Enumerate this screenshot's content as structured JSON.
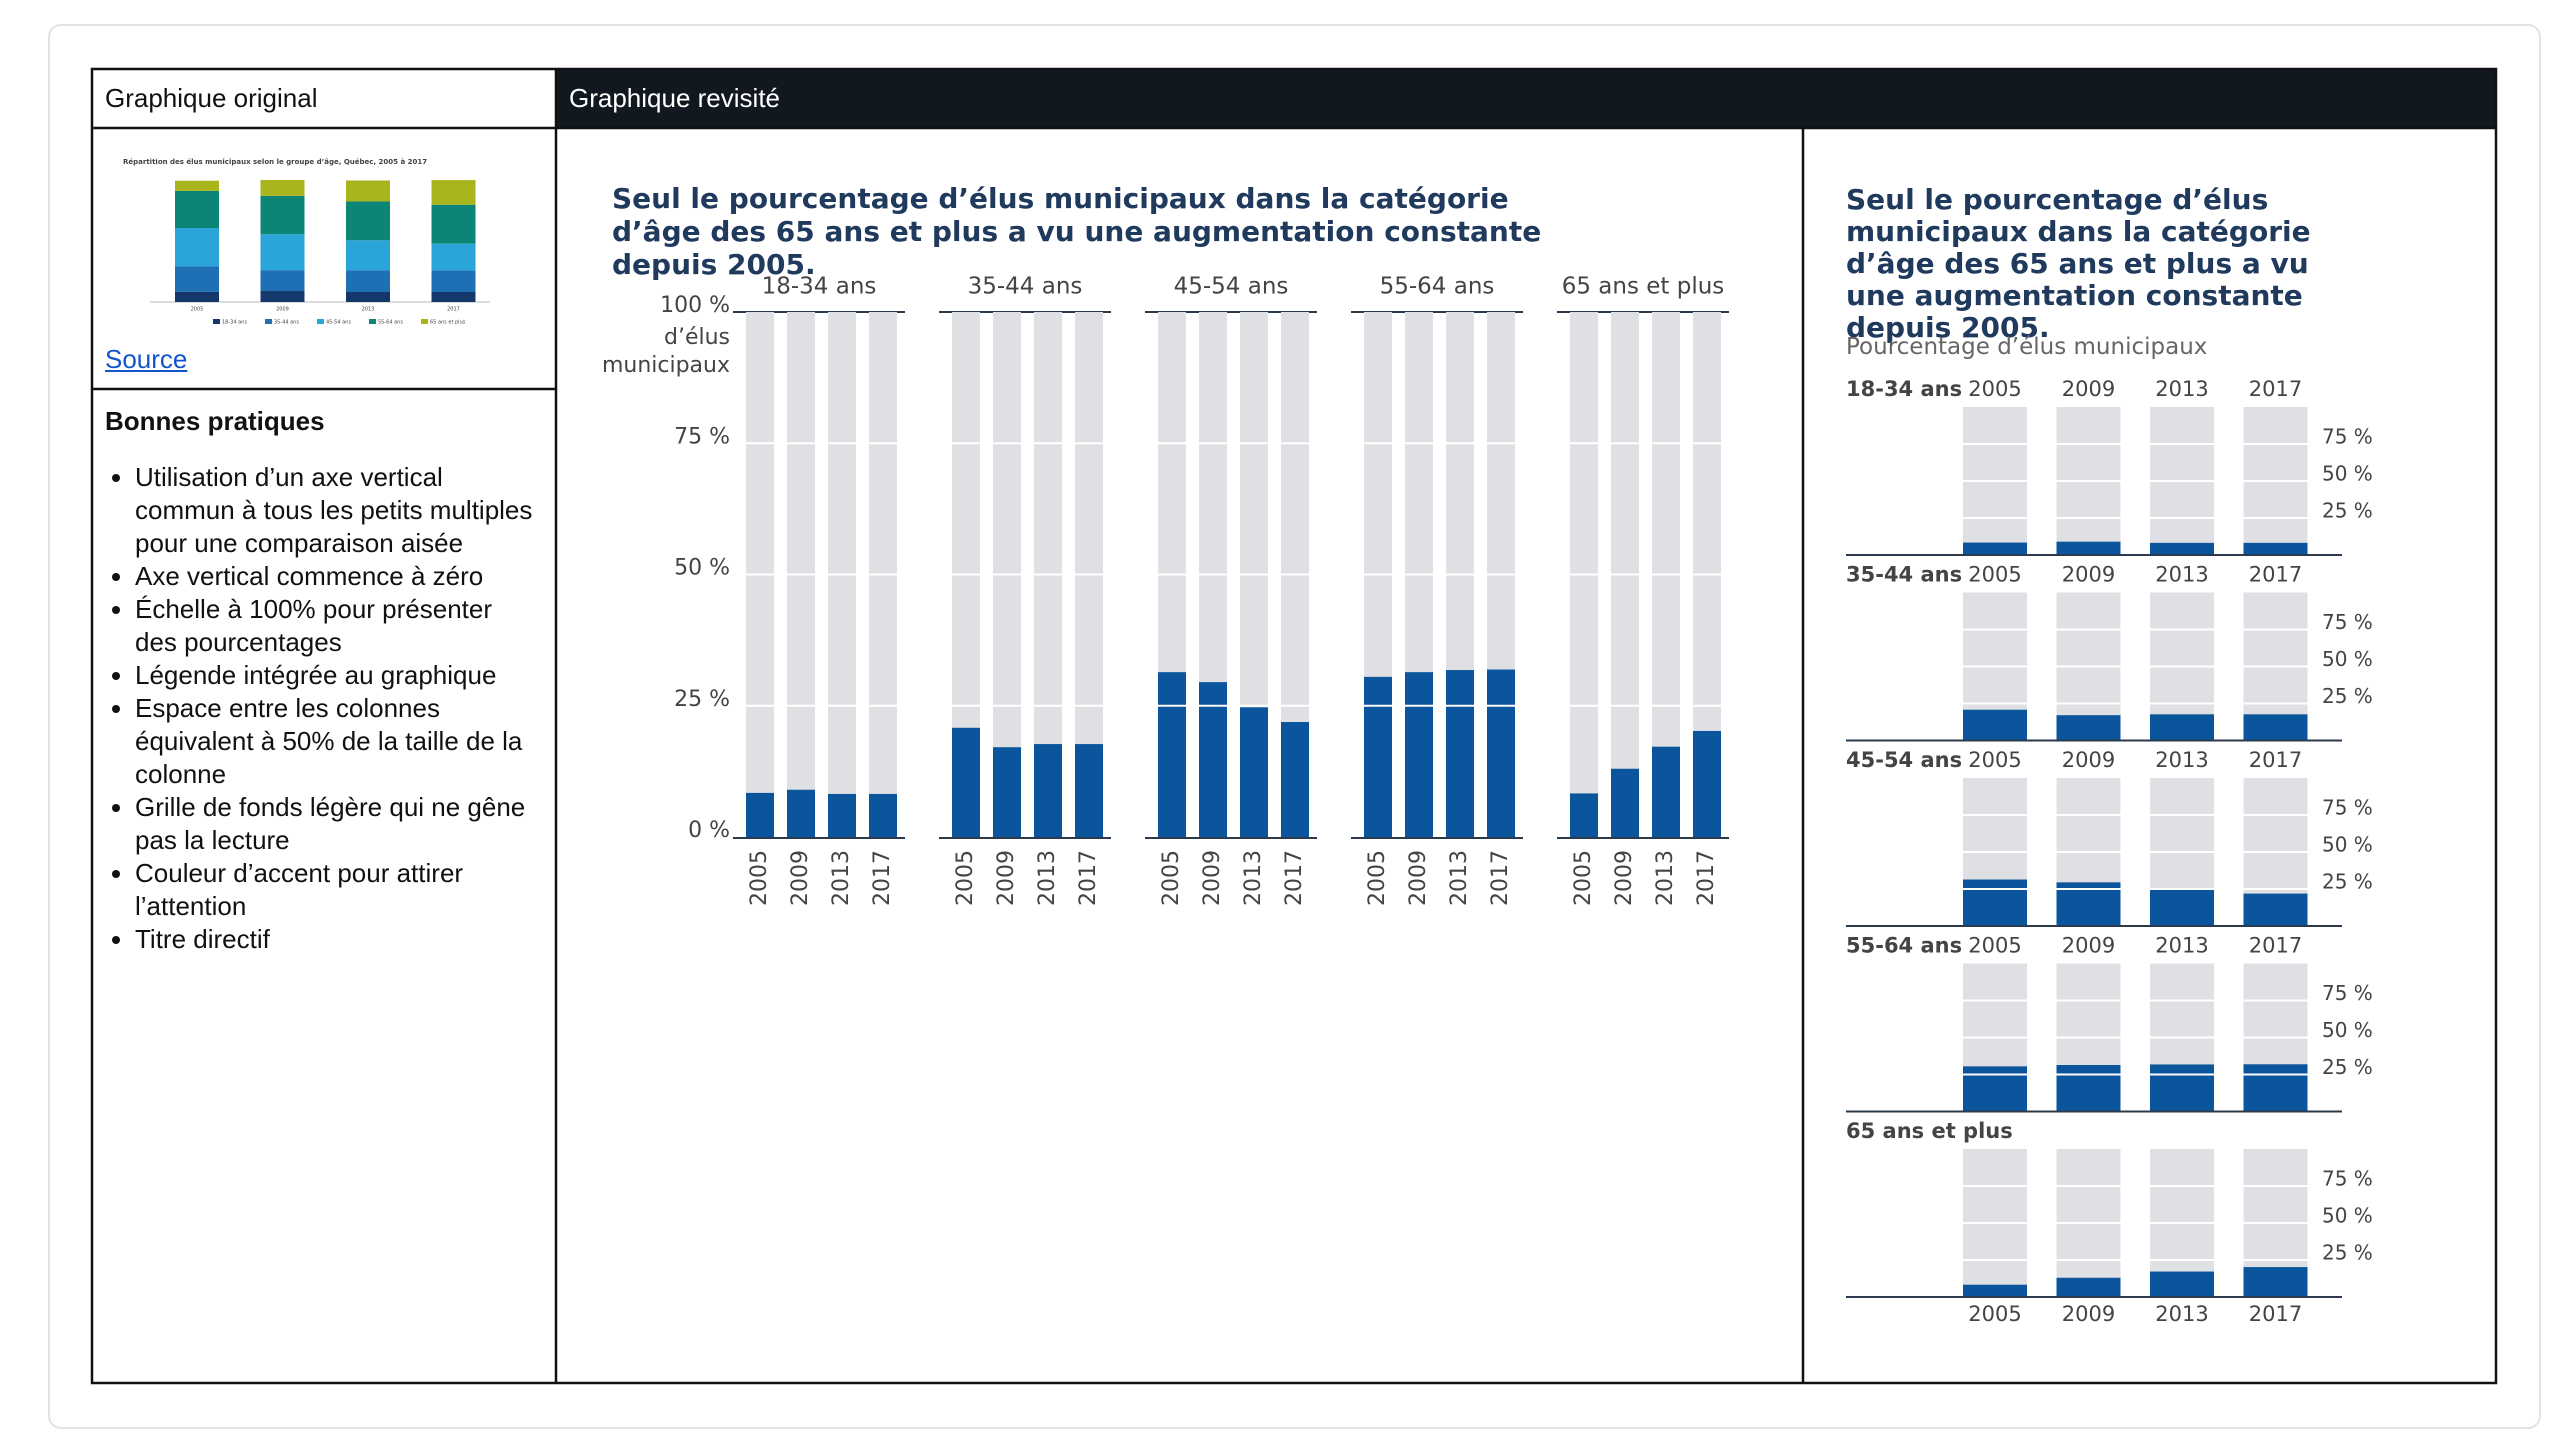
{
  "header": {
    "left": "Graphique original",
    "right": "Graphique revisité"
  },
  "original": {
    "source": "Source"
  },
  "practices": {
    "title": "Bonnes pratiques",
    "items": [
      "Utilisation d’un axe vertical commun à tous les petits multiples pour une comparaison aisée",
      "Axe vertical commence à zéro",
      "Échelle à 100% pour présenter des pourcentages",
      "Légende intégrée au graphique",
      "Espace entre les colonnes équivalent à 50% de la taille de la colonne",
      "Grille de fonds légère qui ne gêne pas la lecture",
      "Couleur d’accent pour attirer l’attention",
      "Titre directif"
    ]
  },
  "chart_data": [
    {
      "type": "stacked_bar",
      "title": "Répartition des élus municipaux selon le groupe d’âge, Québec, 2005 à 2017",
      "categories": [
        "2005",
        "2009",
        "2013",
        "2017"
      ],
      "ylim": [
        0,
        100
      ],
      "series": [
        {
          "name": "18-34 ans",
          "color": "#14386b",
          "values": [
            8.4,
            9.0,
            8.2,
            8.2
          ]
        },
        {
          "name": "35-44 ans",
          "color": "#1f6fb5",
          "values": [
            20.8,
            17.1,
            17.7,
            17.7
          ]
        },
        {
          "name": "45-54 ans",
          "color": "#2aa5d8",
          "values": [
            31.4,
            29.5,
            24.7,
            21.9
          ]
        },
        {
          "name": "55-64 ans",
          "color": "#0c8577",
          "values": [
            30.5,
            31.4,
            31.8,
            31.9
          ]
        },
        {
          "name": "65 ans et plus",
          "color": "#a9b41c",
          "values": [
            8.3,
            13.0,
            17.2,
            20.2
          ]
        }
      ]
    },
    {
      "type": "small_multiples",
      "title": "Seul le pourcentage d’élus municipaux dans la catégorie d’âge des 65 ans et plus a vu une augmentation constante depuis 2005.",
      "ylabel": "d’élus municipaux",
      "categories": [
        "2005",
        "2009",
        "2013",
        "2017"
      ],
      "ylim": [
        0,
        100
      ],
      "yticks": [
        {
          "value": 0,
          "label": "0 %"
        },
        {
          "value": 25,
          "label": "25 %"
        },
        {
          "value": 50,
          "label": "50 %"
        },
        {
          "value": 75,
          "label": "75 %"
        },
        {
          "value": 100,
          "label": "100 %"
        }
      ],
      "series": [
        {
          "name": "18-34 ans",
          "color": "#0b559c",
          "values": [
            8.4,
            9.0,
            8.2,
            8.2
          ]
        },
        {
          "name": "35-44 ans",
          "color": "#0b559c",
          "values": [
            20.8,
            17.1,
            17.7,
            17.7
          ]
        },
        {
          "name": "45-54 ans",
          "color": "#0b559c",
          "values": [
            31.4,
            29.5,
            24.7,
            21.9
          ]
        },
        {
          "name": "55-64 ans",
          "color": "#0b559c",
          "values": [
            30.5,
            31.4,
            31.8,
            31.9
          ]
        },
        {
          "name": "65 ans et plus",
          "color": "#0b559c",
          "values": [
            8.3,
            13.0,
            17.2,
            20.2
          ]
        }
      ]
    },
    {
      "type": "small_multiples_h",
      "title": "Seul le pourcentage d’élus municipaux dans la catégorie d’âge des 65 ans et plus a vu une augmentation constante depuis 2005.",
      "ylabel": "Pourcentage d’élus municipaux",
      "categories": [
        "2005",
        "2009",
        "2013",
        "2017"
      ],
      "ylim": [
        0,
        100
      ],
      "yticks": [
        {
          "value": 25,
          "label": "25 %"
        },
        {
          "value": 50,
          "label": "50 %"
        },
        {
          "value": 75,
          "label": "75 %"
        }
      ],
      "series": [
        {
          "name": "18-34 ans",
          "color": "#0b559c",
          "values": [
            8.4,
            9.0,
            8.2,
            8.2
          ]
        },
        {
          "name": "35-44 ans",
          "color": "#0b559c",
          "values": [
            20.8,
            17.1,
            17.7,
            17.7
          ]
        },
        {
          "name": "45-54 ans",
          "color": "#0b559c",
          "values": [
            31.4,
            29.5,
            24.7,
            21.9
          ]
        },
        {
          "name": "55-64 ans",
          "color": "#0b559c",
          "values": [
            30.5,
            31.4,
            31.8,
            31.9
          ]
        },
        {
          "name": "65 ans et plus",
          "color": "#0b559c",
          "values": [
            8.3,
            13.0,
            17.2,
            20.2
          ]
        }
      ]
    }
  ]
}
